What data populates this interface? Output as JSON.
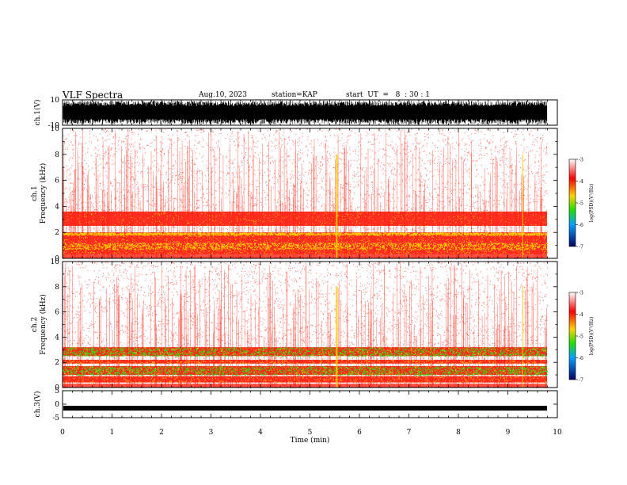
{
  "header": {
    "title": "VLF Spectra",
    "date": "Aug.10, 2023",
    "station": "station=KAP",
    "start": "start  UT  =   8  : 30 : 1"
  },
  "chart_data": [
    {
      "type": "line",
      "name": "ch1-waveform",
      "ylabel": "ch.1(V)",
      "ylim": [
        -10,
        10
      ],
      "yticks": [
        "10",
        "-10"
      ],
      "description_values": "dense broadband waveform saturating near ±10 V across the record"
    },
    {
      "type": "heatmap",
      "name": "ch1-spectrogram",
      "ylabel": "ch.1",
      "ylabel2": "Frequency  (kHz)",
      "ylim": [
        0,
        10
      ],
      "yticks": [
        "10",
        "8",
        "6",
        "4",
        "2",
        "0"
      ],
      "xlim": [
        0,
        10
      ],
      "bands_khz": [
        {
          "from": 0.3,
          "to": 0.7,
          "level": "high"
        },
        {
          "from": 0.7,
          "to": 1.2,
          "level": "mid"
        },
        {
          "from": 1.2,
          "to": 1.8,
          "level": "high"
        },
        {
          "from": 1.8,
          "to": 2.0,
          "level": "mid"
        },
        {
          "from": 2.5,
          "to": 3.6,
          "level": "high"
        }
      ],
      "colorbar": {
        "label": "log(PSD)(V²/Hz)",
        "min": -7,
        "max": -3,
        "ticks": [
          "-3",
          "-4",
          "-5",
          "-6",
          "-7"
        ]
      }
    },
    {
      "type": "heatmap",
      "name": "ch2-spectrogram",
      "ylabel": "ch.2",
      "ylabel2": "Frequency  (kHz)",
      "ylim": [
        0,
        10
      ],
      "yticks": [
        "10",
        "8",
        "6",
        "4",
        "2",
        "0"
      ],
      "xlim": [
        0,
        10
      ],
      "bands_khz": [
        {
          "from": 0.4,
          "to": 0.9,
          "level": "high"
        },
        {
          "from": 1.0,
          "to": 1.7,
          "level": "strong"
        },
        {
          "from": 1.9,
          "to": 2.2,
          "level": "high"
        },
        {
          "from": 2.5,
          "to": 3.2,
          "level": "strong"
        }
      ],
      "colorbar": {
        "label": "log(PSD)(V²/Hz)",
        "min": -7,
        "max": -3,
        "ticks": [
          "-3",
          "-4",
          "-5",
          "-6",
          "-7"
        ]
      }
    },
    {
      "type": "line",
      "name": "ch3-waveform",
      "ylabel": "ch.3(V)",
      "ylim": [
        -5,
        5
      ],
      "yticks": [
        "5",
        "0",
        "-5"
      ],
      "level_v": -1.5,
      "xlabel": "Time  (min)",
      "xlim": [
        0,
        10
      ],
      "xticks": [
        "0",
        "1",
        "2",
        "3",
        "4",
        "5",
        "6",
        "7",
        "8",
        "9",
        "10"
      ]
    }
  ],
  "colors": {
    "high": "#ff1a0a",
    "mid": "#ffd000",
    "strong": "#25e010",
    "background": "#ffffff"
  }
}
